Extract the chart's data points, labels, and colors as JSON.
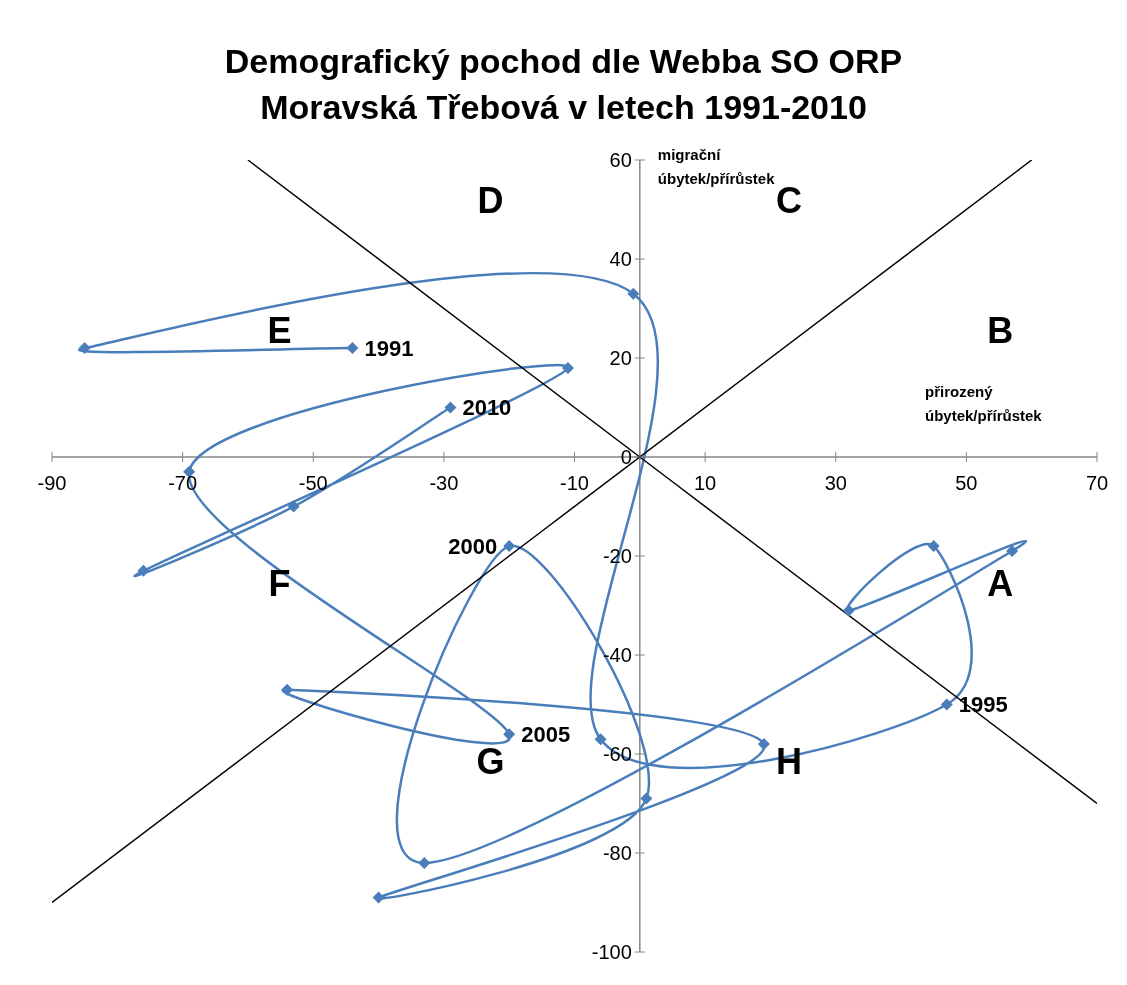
{
  "chart_data": {
    "type": "line",
    "title": "Demografický pochod dle Webba SO ORP Moravská Třebová v letech 1991-2010",
    "xlabel": "přirozený úbytek/přírůstek",
    "ylabel": "migrační úbytek/přírůstek",
    "xlim": [
      -90,
      70
    ],
    "xticks": [
      -90,
      -70,
      -50,
      -30,
      -10,
      10,
      30,
      50,
      70
    ],
    "ylim": [
      -100,
      60
    ],
    "yticks": [
      -100,
      -80,
      -60,
      -40,
      -20,
      0,
      20,
      40,
      60
    ],
    "series": [
      {
        "type": "line",
        "color": "#4a7ebb",
        "marker": "diamond",
        "line_style": "solid",
        "x": [
          -44,
          -85,
          -1,
          -6,
          47,
          45,
          32,
          57,
          -33,
          -20,
          1,
          -40,
          19,
          -54,
          -20,
          -69,
          -11,
          -76,
          -53,
          -29
        ],
        "values": [
          22,
          22,
          33,
          -57,
          -50,
          -18,
          -31,
          -19,
          -82,
          -18,
          -69,
          -89,
          -58,
          -47,
          -56,
          -3,
          18,
          -23,
          -10,
          10
        ]
      },
      {
        "type": "line",
        "color": "#000000",
        "marker": "none",
        "line_style": "solid",
        "x": [
          -60,
          70
        ],
        "values": [
          60,
          -70
        ]
      },
      {
        "type": "line",
        "color": "#000000",
        "marker": "none",
        "line_style": "solid",
        "x": [
          -90,
          60
        ],
        "values": [
          -90,
          60
        ]
      }
    ],
    "annotations": [
      {
        "text": "1991",
        "x": -44,
        "y": 22
      },
      {
        "text": "1995",
        "x": 47,
        "y": -50
      },
      {
        "text": "2000",
        "x": -20,
        "y": -18
      },
      {
        "text": "2005",
        "x": -20,
        "y": -56
      },
      {
        "text": "2010",
        "x": -29,
        "y": 10
      },
      "A",
      "B",
      "C",
      "D",
      "E",
      "F",
      "G",
      "H"
    ]
  }
}
